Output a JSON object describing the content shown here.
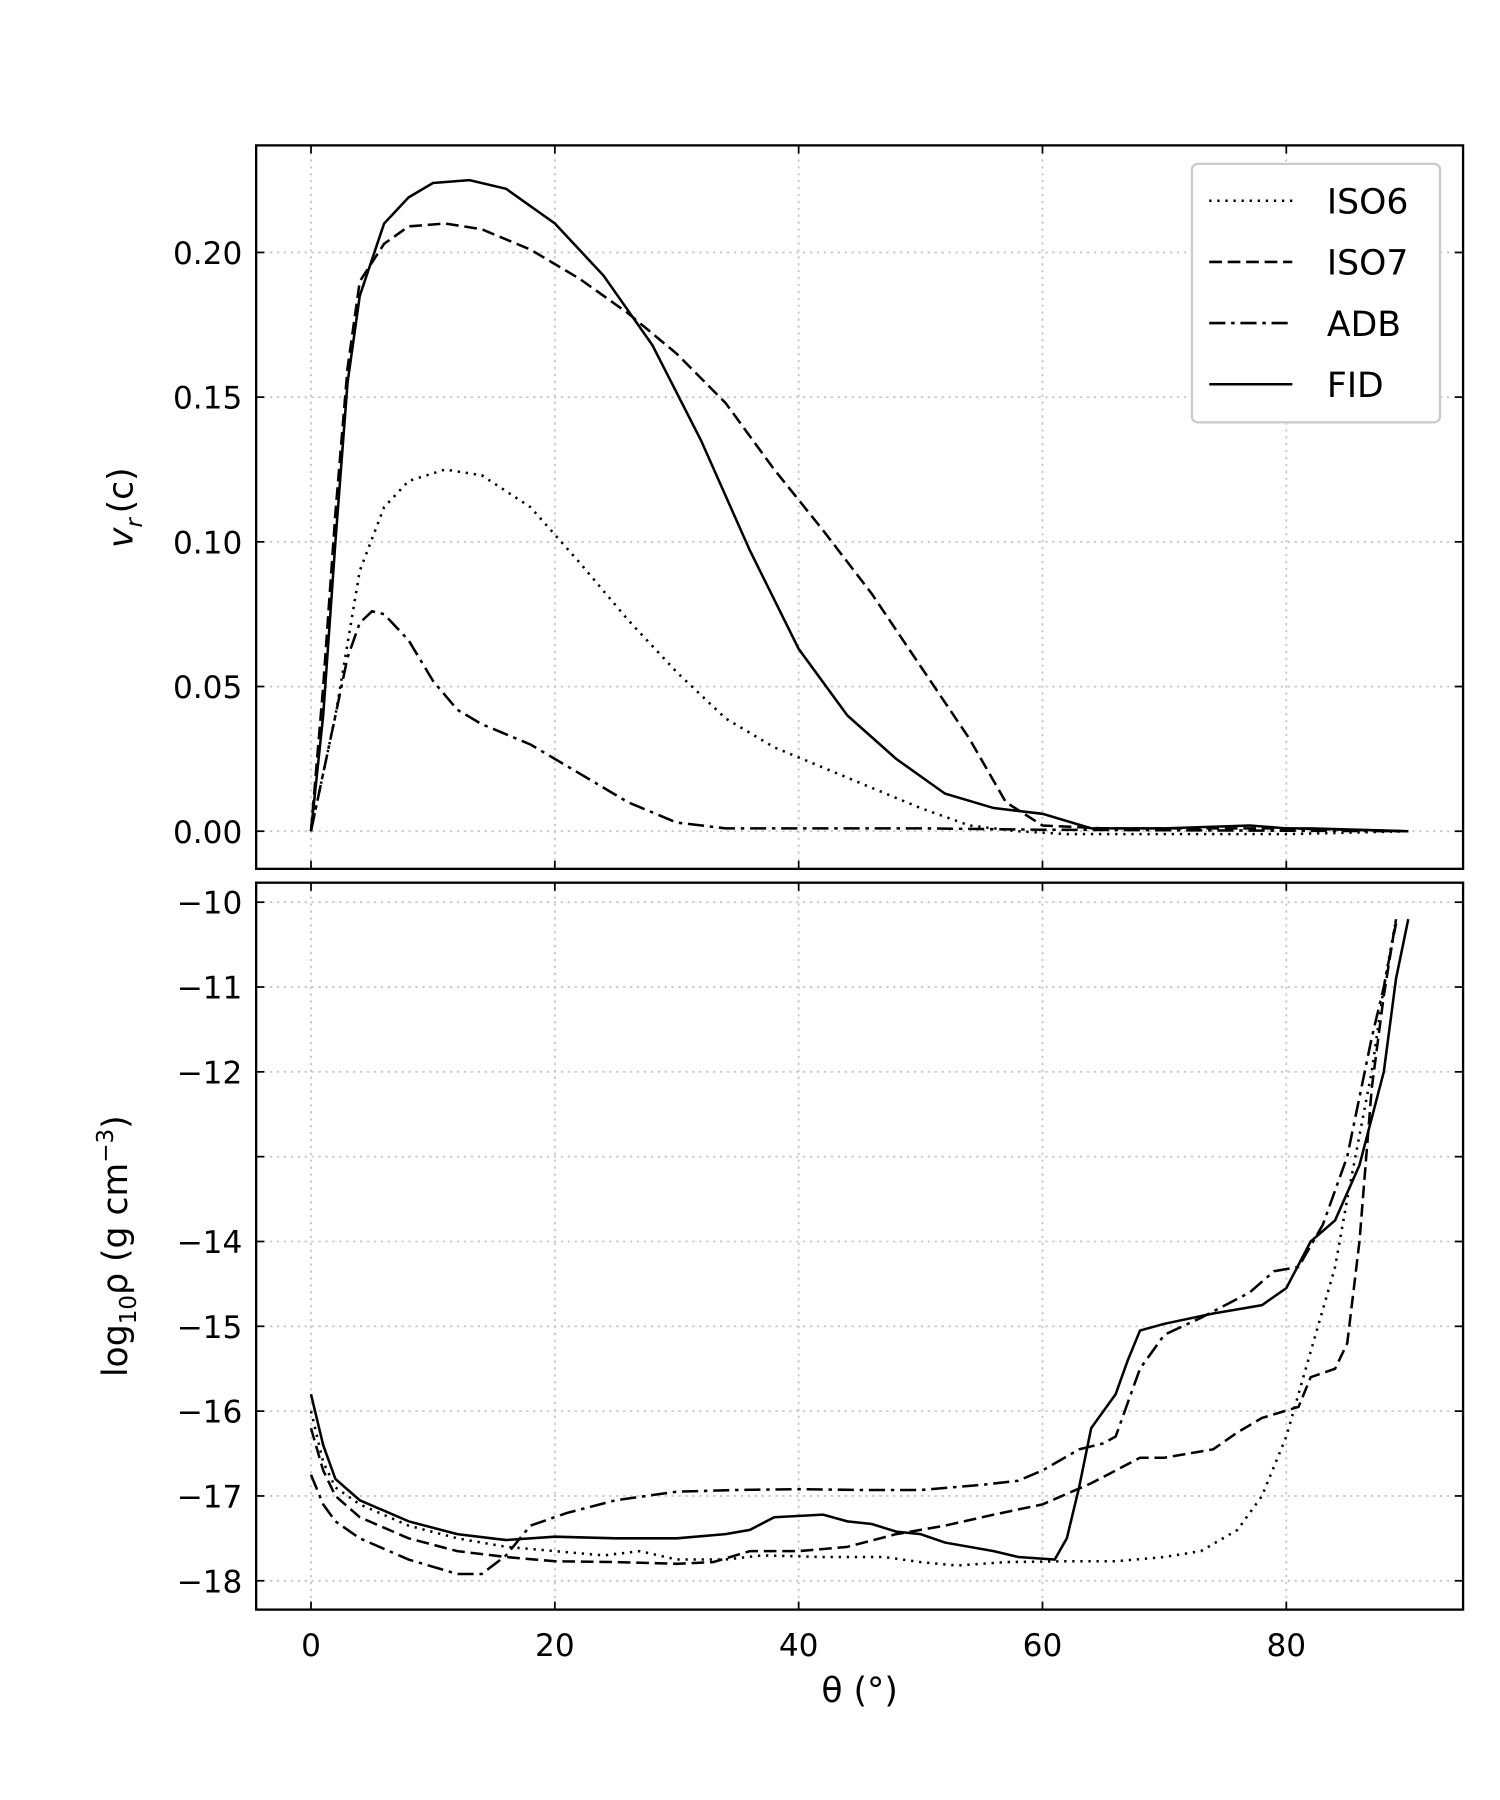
{
  "chart_data": [
    {
      "type": "line",
      "ylabel_main": "v",
      "ylabel_sub": "r",
      "ylabel_unit": "(c)",
      "xlim": [
        -4.5,
        94.5
      ],
      "ylim": [
        -0.013,
        0.237
      ],
      "yticks": [
        0.0,
        0.05,
        0.1,
        0.15,
        0.2
      ],
      "ytick_labels": [
        "0.00",
        "0.05",
        "0.10",
        "0.15",
        "0.20"
      ],
      "grid": true,
      "legend_position": "top-right",
      "series": [
        {
          "name": "ISO6",
          "style": "dotted",
          "x": [
            0,
            2,
            4,
            6,
            8,
            11,
            14,
            18,
            22,
            26,
            30,
            34,
            38,
            42,
            46,
            50,
            54,
            58,
            62,
            70,
            80,
            90
          ],
          "y": [
            0,
            0.04,
            0.09,
            0.112,
            0.121,
            0.125,
            0.123,
            0.112,
            0.093,
            0.073,
            0.055,
            0.039,
            0.029,
            0.022,
            0.015,
            0.008,
            0.002,
            0,
            -0.001,
            -0.001,
            -0.001,
            0
          ]
        },
        {
          "name": "ISO7",
          "style": "dashed",
          "x": [
            0,
            1,
            2,
            3,
            4,
            6,
            8,
            11,
            14,
            18,
            22,
            26,
            30,
            34,
            38,
            42,
            46,
            50,
            54,
            57,
            60,
            65,
            80,
            90
          ],
          "y": [
            0,
            0.05,
            0.11,
            0.16,
            0.19,
            0.203,
            0.209,
            0.21,
            0.208,
            0.201,
            0.191,
            0.179,
            0.165,
            0.148,
            0.125,
            0.104,
            0.082,
            0.057,
            0.032,
            0.01,
            0.002,
            0.001,
            0.001,
            0
          ]
        },
        {
          "name": "ADB",
          "style": "dashdot",
          "x": [
            0,
            1,
            2,
            3,
            4,
            5,
            6,
            8,
            10,
            12,
            14,
            18,
            22,
            26,
            30,
            34,
            40,
            50,
            60,
            90
          ],
          "y": [
            0,
            0.02,
            0.04,
            0.06,
            0.072,
            0.076,
            0.075,
            0.066,
            0.052,
            0.042,
            0.037,
            0.03,
            0.02,
            0.01,
            0.003,
            0.001,
            0.001,
            0.001,
            0.0005,
            0
          ]
        },
        {
          "name": "FID",
          "style": "solid",
          "x": [
            0,
            1,
            2,
            3,
            4,
            6,
            8,
            10,
            13,
            16,
            20,
            24,
            28,
            32,
            36,
            40,
            44,
            48,
            52,
            56,
            60,
            64,
            70,
            77,
            80,
            82,
            90
          ],
          "y": [
            0,
            0.04,
            0.1,
            0.155,
            0.185,
            0.21,
            0.219,
            0.224,
            0.225,
            0.222,
            0.21,
            0.192,
            0.168,
            0.135,
            0.097,
            0.063,
            0.04,
            0.025,
            0.013,
            0.008,
            0.006,
            0.001,
            0.001,
            0.002,
            0.001,
            0.001,
            0
          ]
        }
      ]
    },
    {
      "type": "line",
      "ylabel": "log10ρ (g cm−3)",
      "ylabel_pre": "log",
      "ylabel_sub": "10",
      "ylabel_rho": "ρ (g cm",
      "ylabel_sup": "−3",
      "ylabel_end": ")",
      "xlabel": "θ (°)",
      "xlim": [
        -4.5,
        94.5
      ],
      "ylim": [
        -18.34,
        -9.77
      ],
      "xticks": [
        0,
        20,
        40,
        60,
        80
      ],
      "xtick_labels": [
        "0",
        "20",
        "40",
        "60",
        "80"
      ],
      "yticks": [
        -10,
        -11,
        -12,
        -13,
        -14,
        -15,
        -16,
        -17,
        -18
      ],
      "ytick_labels": [
        "−10",
        "−11",
        "−12",
        "",
        "−14",
        "−15",
        "−16",
        "−17",
        "−18"
      ],
      "grid": true,
      "series": [
        {
          "name": "ISO6",
          "style": "dotted",
          "x": [
            0,
            1,
            2,
            4,
            8,
            12,
            16,
            20,
            24,
            27,
            30,
            34,
            37,
            42,
            47,
            50,
            53,
            57,
            62,
            66,
            70,
            73,
            76,
            78,
            80,
            82,
            84,
            85,
            87,
            88,
            89
          ],
          "y": [
            -16.0,
            -16.6,
            -16.9,
            -17.1,
            -17.35,
            -17.5,
            -17.6,
            -17.65,
            -17.7,
            -17.65,
            -17.75,
            -17.75,
            -17.7,
            -17.72,
            -17.72,
            -17.78,
            -17.82,
            -17.78,
            -17.77,
            -17.77,
            -17.72,
            -17.65,
            -17.4,
            -17.0,
            -16.3,
            -15.3,
            -14.3,
            -13.5,
            -12.0,
            -11.0,
            -10.2
          ]
        },
        {
          "name": "ISO7",
          "style": "dashed",
          "x": [
            0,
            1,
            2,
            4,
            8,
            12,
            16,
            20,
            25,
            30,
            33,
            36,
            40,
            44,
            48,
            52,
            56,
            60,
            64,
            68,
            70,
            74,
            76,
            78,
            81,
            82,
            84,
            85,
            86,
            87,
            88,
            89
          ],
          "y": [
            -16.2,
            -16.7,
            -17.0,
            -17.25,
            -17.5,
            -17.65,
            -17.72,
            -17.77,
            -17.78,
            -17.8,
            -17.78,
            -17.65,
            -17.65,
            -17.6,
            -17.45,
            -17.35,
            -17.22,
            -17.1,
            -16.85,
            -16.55,
            -16.55,
            -16.45,
            -16.25,
            -16.08,
            -15.95,
            -15.6,
            -15.5,
            -15.2,
            -14.0,
            -12.2,
            -11.1,
            -10.2
          ]
        },
        {
          "name": "ADB",
          "style": "dashdot",
          "x": [
            0,
            1,
            2,
            4,
            8,
            12,
            14,
            16,
            18,
            21,
            25,
            30,
            35,
            40,
            45,
            50,
            55,
            58,
            60,
            63,
            65,
            66,
            68,
            70,
            73,
            77,
            79,
            81,
            83,
            85,
            86,
            87,
            88,
            89
          ],
          "y": [
            -16.75,
            -17.1,
            -17.3,
            -17.5,
            -17.75,
            -17.92,
            -17.92,
            -17.7,
            -17.35,
            -17.2,
            -17.05,
            -16.95,
            -16.93,
            -16.92,
            -16.93,
            -16.93,
            -16.87,
            -16.82,
            -16.7,
            -16.45,
            -16.38,
            -16.3,
            -15.5,
            -15.1,
            -14.9,
            -14.6,
            -14.35,
            -14.3,
            -13.8,
            -13.0,
            -12.3,
            -11.6,
            -11.0,
            -10.25
          ]
        },
        {
          "name": "FID",
          "style": "solid",
          "x": [
            0,
            1,
            2,
            4,
            8,
            12,
            16,
            20,
            25,
            30,
            34,
            36,
            38,
            42,
            44,
            46,
            48,
            50,
            52,
            56,
            58,
            61,
            62,
            63,
            64,
            66,
            67,
            68,
            70,
            74,
            76,
            78,
            80,
            82,
            84,
            86,
            88,
            89,
            90
          ],
          "y": [
            -15.8,
            -16.4,
            -16.8,
            -17.05,
            -17.3,
            -17.45,
            -17.52,
            -17.48,
            -17.5,
            -17.5,
            -17.45,
            -17.4,
            -17.25,
            -17.22,
            -17.3,
            -17.33,
            -17.42,
            -17.45,
            -17.55,
            -17.65,
            -17.72,
            -17.75,
            -17.5,
            -16.9,
            -16.2,
            -15.8,
            -15.4,
            -15.05,
            -14.97,
            -14.85,
            -14.8,
            -14.75,
            -14.55,
            -14.0,
            -13.75,
            -13.1,
            -12.0,
            -10.9,
            -10.2
          ]
        }
      ]
    }
  ]
}
